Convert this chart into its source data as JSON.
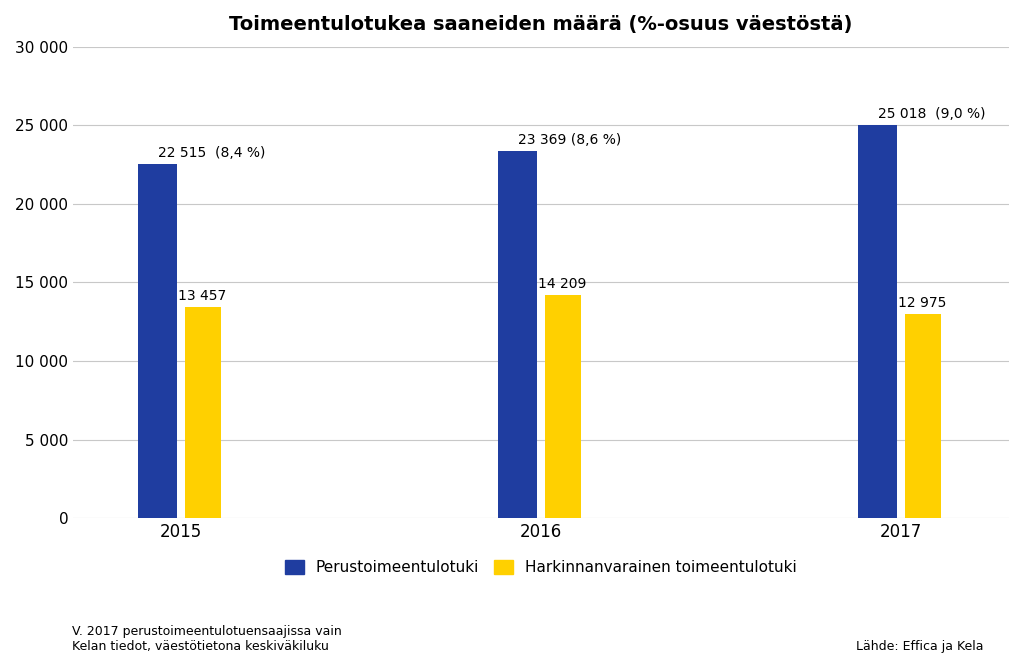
{
  "title": "Toimeentulotukea saaneiden määrä (%-osuus väestöstä)",
  "years": [
    "2015",
    "2016",
    "2017"
  ],
  "blue_values": [
    22515,
    23369,
    25018
  ],
  "yellow_values": [
    13457,
    14209,
    12975
  ],
  "blue_labels": [
    "22 515  (8,4 %)",
    "23 369 (8,6 %)",
    "25 018  (9,0 %)"
  ],
  "yellow_labels": [
    "13 457",
    "14 209",
    "12 975"
  ],
  "blue_color": "#1F3DA0",
  "yellow_color": "#FFD000",
  "background_color": "#FFFFFF",
  "ylim": [
    0,
    30000
  ],
  "yticks": [
    0,
    5000,
    10000,
    15000,
    20000,
    25000,
    30000
  ],
  "ytick_labels": [
    "0",
    "5 000",
    "10 000",
    "15 000",
    "20 000",
    "25 000",
    "30 000"
  ],
  "legend_blue": "Perustoimeentulotuki",
  "legend_yellow": "Harkinnanvarainen toimeentulotuki",
  "footnote": "V. 2017 perustoimeentulotuensaajissa vain\nKelan tiedot, väestötietona keskiväkiluku",
  "source": "Lähde: Effica ja Kela",
  "blue_bar_width": 0.22,
  "yellow_bar_width": 0.2,
  "group_positions": [
    0.18,
    0.5,
    0.82
  ]
}
